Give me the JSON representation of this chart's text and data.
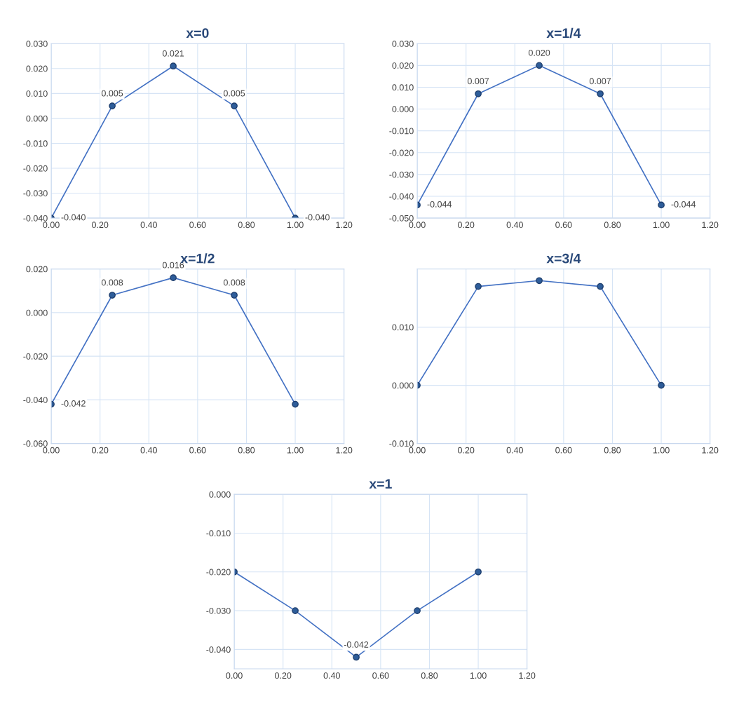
{
  "chart_data": [
    {
      "type": "line",
      "title": "x=0",
      "x": [
        0,
        0.25,
        0.5,
        0.75,
        1.0
      ],
      "values": [
        -0.04,
        0.005,
        0.021,
        0.005,
        -0.04
      ],
      "value_labels": [
        "-0.040",
        "0.005",
        "0.021",
        "0.005",
        "-0.040"
      ],
      "color": "#4472c4",
      "marker": "circle",
      "grid": true,
      "xlim": [
        0,
        1.2
      ],
      "xticks": [
        {
          "value": 0,
          "label": "0.00"
        },
        {
          "value": 0.2,
          "label": "0.20"
        },
        {
          "value": 0.4,
          "label": "0.40"
        },
        {
          "value": 0.6,
          "label": "0.60"
        },
        {
          "value": 0.8,
          "label": "0.80"
        },
        {
          "value": 1.0,
          "label": "1.00"
        },
        {
          "value": 1.2,
          "label": "1.20"
        }
      ],
      "ylim": [
        -0.04,
        0.03
      ],
      "yticks": [
        {
          "value": -0.04,
          "label": "-0.040"
        },
        {
          "value": -0.03,
          "label": "-0.030"
        },
        {
          "value": -0.02,
          "label": "-0.020"
        },
        {
          "value": -0.01,
          "label": "-0.010"
        },
        {
          "value": 0,
          "label": "0.000"
        },
        {
          "value": 0.01,
          "label": "0.010"
        },
        {
          "value": 0.02,
          "label": "0.020"
        },
        {
          "value": 0.03,
          "label": "0.030"
        }
      ]
    },
    {
      "type": "line",
      "title": "x=1/4",
      "x": [
        0,
        0.25,
        0.5,
        0.75,
        1.0
      ],
      "values": [
        -0.044,
        0.007,
        0.02,
        0.007,
        -0.044
      ],
      "value_labels": [
        "-0.044",
        "0.007",
        "0.020",
        "0.007",
        "-0.044"
      ],
      "color": "#4472c4",
      "marker": "circle",
      "grid": true,
      "xlim": [
        0,
        1.2
      ],
      "xticks": [
        {
          "value": 0,
          "label": "0.00"
        },
        {
          "value": 0.2,
          "label": "0.20"
        },
        {
          "value": 0.4,
          "label": "0.40"
        },
        {
          "value": 0.6,
          "label": "0.60"
        },
        {
          "value": 0.8,
          "label": "0.80"
        },
        {
          "value": 1.0,
          "label": "1.00"
        },
        {
          "value": 1.2,
          "label": "1.20"
        }
      ],
      "ylim": [
        -0.05,
        0.03
      ],
      "yticks": [
        {
          "value": -0.05,
          "label": "-0.050"
        },
        {
          "value": -0.04,
          "label": "-0.040"
        },
        {
          "value": -0.03,
          "label": "-0.030"
        },
        {
          "value": -0.02,
          "label": "-0.020"
        },
        {
          "value": -0.01,
          "label": "-0.010"
        },
        {
          "value": 0,
          "label": "0.000"
        },
        {
          "value": 0.01,
          "label": "0.010"
        },
        {
          "value": 0.02,
          "label": "0.020"
        },
        {
          "value": 0.03,
          "label": "0.030"
        }
      ]
    },
    {
      "type": "line",
      "title": "x=1/2",
      "x": [
        0,
        0.25,
        0.5,
        0.75,
        1.0
      ],
      "values": [
        -0.042,
        0.008,
        0.016,
        0.008,
        -0.042
      ],
      "value_labels": [
        "-0.042",
        "0.008",
        "0.016",
        "0.008",
        null
      ],
      "color": "#4472c4",
      "marker": "circle",
      "grid": true,
      "xlim": [
        0,
        1.2
      ],
      "xticks": [
        {
          "value": 0,
          "label": "0.00"
        },
        {
          "value": 0.2,
          "label": "0.20"
        },
        {
          "value": 0.4,
          "label": "0.40"
        },
        {
          "value": 0.6,
          "label": "0.60"
        },
        {
          "value": 0.8,
          "label": "0.80"
        },
        {
          "value": 1.0,
          "label": "1.00"
        },
        {
          "value": 1.2,
          "label": "1.20"
        }
      ],
      "ylim": [
        -0.06,
        0.02
      ],
      "yticks": [
        {
          "value": -0.06,
          "label": "-0.060"
        },
        {
          "value": -0.04,
          "label": "-0.040"
        },
        {
          "value": -0.02,
          "label": "-0.020"
        },
        {
          "value": 0,
          "label": "0.000"
        },
        {
          "value": 0.02,
          "label": "0.020"
        }
      ]
    },
    {
      "type": "line",
      "title": "x=3/4",
      "x": [
        0,
        0.25,
        0.5,
        0.75,
        1.0
      ],
      "values": [
        0.0,
        0.017,
        0.018,
        0.017,
        0.0
      ],
      "color": "#4472c4",
      "marker": "circle",
      "grid": true,
      "xlim": [
        0,
        1.2
      ],
      "xticks": [
        {
          "value": 0,
          "label": "0.00"
        },
        {
          "value": 0.2,
          "label": "0.20"
        },
        {
          "value": 0.4,
          "label": "0.40"
        },
        {
          "value": 0.6,
          "label": "0.60"
        },
        {
          "value": 0.8,
          "label": "0.80"
        },
        {
          "value": 1.0,
          "label": "1.00"
        },
        {
          "value": 1.2,
          "label": "1.20"
        }
      ],
      "ylim": [
        -0.01,
        0.02
      ],
      "yticks": [
        {
          "value": -0.01,
          "label": "-0.010"
        },
        {
          "value": 0,
          "label": "0.000"
        },
        {
          "value": 0.01,
          "label": "0.010"
        }
      ]
    },
    {
      "type": "line",
      "title": "x=1",
      "x": [
        0,
        0.25,
        0.5,
        0.75,
        1.0
      ],
      "values": [
        -0.02,
        -0.03,
        -0.042,
        -0.03,
        -0.02
      ],
      "value_labels": [
        null,
        null,
        "-0.042",
        null,
        null
      ],
      "color": "#4472c4",
      "marker": "circle",
      "grid": true,
      "xlim": [
        0,
        1.2
      ],
      "xticks": [
        {
          "value": 0,
          "label": "0.00"
        },
        {
          "value": 0.2,
          "label": "0.20"
        },
        {
          "value": 0.4,
          "label": "0.40"
        },
        {
          "value": 0.6,
          "label": "0.60"
        },
        {
          "value": 0.8,
          "label": "0.80"
        },
        {
          "value": 1.0,
          "label": "1.00"
        },
        {
          "value": 1.2,
          "label": "1.20"
        }
      ],
      "ylim": [
        -0.045,
        0.0
      ],
      "yticks": [
        {
          "value": -0.04,
          "label": "-0.040"
        },
        {
          "value": -0.03,
          "label": "-0.030"
        },
        {
          "value": -0.02,
          "label": "-0.020"
        },
        {
          "value": -0.01,
          "label": "-0.010"
        },
        {
          "value": 0,
          "label": "0.000"
        }
      ]
    }
  ]
}
